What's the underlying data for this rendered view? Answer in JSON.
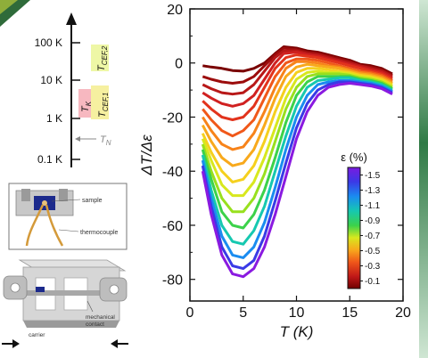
{
  "scale_panel": {
    "ticks": [
      "100 K",
      "10 K",
      "1 K",
      "0.1 K"
    ],
    "labels": {
      "tcef2": {
        "main": "T",
        "sub": "CEF,2"
      },
      "tcef1": {
        "main": "T",
        "sub": "CEF,1"
      },
      "tk": {
        "main": "T",
        "sub": "K"
      },
      "tn": {
        "main": "T",
        "sub": "N"
      }
    },
    "colors": {
      "tcef2": "#eef7a6",
      "tcef1": "#f6f0a0",
      "tk": "#f7b8c0"
    }
  },
  "setup_panel": {
    "sample_label": "sample",
    "thermocouple_label": "thermocouple"
  },
  "carrier_panel": {
    "mechanical_contact_label": "mechanical contact",
    "carrier_label": "carrier"
  },
  "chart_data": {
    "type": "line",
    "xlabel": "T (K)",
    "ylabel": "ΔT/Δε",
    "xlim": [
      0,
      20
    ],
    "ylim": [
      -90,
      20
    ],
    "xticks": [
      "0",
      "5",
      "10",
      "15",
      "20"
    ],
    "yticks": [
      "20",
      "0",
      "-20",
      "-40",
      "-60",
      "-80"
    ],
    "grid": false,
    "legend": {
      "title": "ε (%)",
      "placement": "right, below center",
      "ticks": [
        "-1.5",
        "-1.3",
        "-1.1",
        "-0.9",
        "-0.7",
        "-0.5",
        "-0.3",
        "-0.1"
      ],
      "range": [
        -1.6,
        0.0
      ]
    },
    "series": [
      {
        "eps": -0.05,
        "color": "#7a0000",
        "x": [
          1.2,
          2,
          3,
          4,
          5,
          6,
          7,
          8,
          8.8,
          10,
          11,
          12,
          13,
          14,
          15,
          16,
          17,
          18,
          19
        ],
        "y": [
          -1,
          -1.5,
          -2,
          -2.8,
          -3,
          -2,
          0,
          3.5,
          6,
          5.5,
          4.5,
          4,
          3,
          2,
          1,
          -0.5,
          -1,
          -2,
          -4
        ]
      },
      {
        "eps": -0.15,
        "color": "#9c0c0c",
        "x": [
          1.2,
          2,
          3,
          4,
          5,
          6,
          7,
          8,
          8.8,
          10,
          11,
          12,
          13,
          14,
          15,
          16,
          17,
          18,
          19
        ],
        "y": [
          -5,
          -6,
          -7,
          -7.5,
          -7,
          -5,
          -1,
          3,
          5.5,
          5,
          4,
          3.5,
          2.5,
          1.5,
          0.5,
          -1,
          -1.5,
          -2.5,
          -4.5
        ]
      },
      {
        "eps": -0.25,
        "color": "#b81818",
        "x": [
          1.2,
          2,
          3,
          4,
          5,
          6,
          7,
          8,
          8.8,
          10,
          11,
          12,
          13,
          14,
          15,
          16,
          17,
          18,
          19
        ],
        "y": [
          -8,
          -9.5,
          -11,
          -11.5,
          -11,
          -8,
          -3,
          2,
          4.5,
          4.5,
          3.5,
          3,
          2,
          1,
          0,
          -1,
          -2,
          -3,
          -5
        ]
      },
      {
        "eps": -0.35,
        "color": "#d02020",
        "x": [
          1.2,
          2,
          3,
          4,
          5,
          6,
          7,
          8,
          8.8,
          10,
          11,
          12,
          13,
          14,
          15,
          16,
          17,
          18,
          19
        ],
        "y": [
          -11,
          -13,
          -15,
          -16,
          -15,
          -12,
          -6,
          0,
          3.5,
          4,
          3,
          2.5,
          1.5,
          0.5,
          -0.5,
          -1.5,
          -2.5,
          -3.5,
          -5.5
        ]
      },
      {
        "eps": -0.45,
        "color": "#e2331c",
        "x": [
          1.2,
          2,
          3,
          4,
          5,
          6,
          7,
          8,
          9,
          10,
          11,
          12,
          13,
          14,
          15,
          16,
          17,
          18,
          19
        ],
        "y": [
          -14,
          -17,
          -20,
          -21,
          -20,
          -16,
          -9,
          -2,
          2,
          3,
          2.5,
          2,
          1,
          0,
          -1,
          -2,
          -3,
          -4,
          -6
        ]
      },
      {
        "eps": -0.55,
        "color": "#f0581a",
        "x": [
          1.2,
          2,
          3,
          4,
          5,
          6,
          7,
          8,
          9,
          10,
          11,
          12,
          13,
          14,
          15,
          16,
          17,
          18,
          19
        ],
        "y": [
          -17,
          -21,
          -25,
          -27,
          -25,
          -21,
          -13,
          -5,
          0,
          1.5,
          1.5,
          1,
          0,
          -1,
          -2,
          -3,
          -3.5,
          -4.5,
          -6.5
        ]
      },
      {
        "eps": -0.65,
        "color": "#f7831a",
        "x": [
          1.2,
          2,
          3,
          4,
          5,
          6,
          7,
          8,
          9,
          10,
          11,
          12,
          13,
          14,
          15,
          16,
          17,
          18,
          19
        ],
        "y": [
          -20,
          -25,
          -30,
          -32,
          -31,
          -26,
          -18,
          -9,
          -2,
          0.5,
          0.5,
          0,
          -1,
          -1.5,
          -2.5,
          -3.5,
          -4,
          -5,
          -7
        ]
      },
      {
        "eps": -0.75,
        "color": "#f8a91c",
        "x": [
          1.2,
          2,
          3,
          4,
          5,
          6,
          7,
          8,
          9,
          10,
          11,
          12,
          13,
          14,
          15,
          16,
          17,
          18,
          19
        ],
        "y": [
          -23,
          -29,
          -35,
          -38,
          -37,
          -32,
          -23,
          -13,
          -5,
          -1.5,
          -0.5,
          -1,
          -1.5,
          -2,
          -3,
          -4,
          -4.5,
          -5.5,
          -7.5
        ]
      },
      {
        "eps": -0.85,
        "color": "#f5d01e",
        "x": [
          1.2,
          2,
          3,
          4,
          5,
          6,
          7,
          8,
          9,
          10,
          11,
          12,
          13,
          14,
          15,
          16,
          17,
          18,
          19
        ],
        "y": [
          -26,
          -33,
          -40,
          -44,
          -43,
          -38,
          -29,
          -18,
          -9,
          -3.5,
          -2,
          -2,
          -2.5,
          -3,
          -3.5,
          -4.5,
          -5,
          -6,
          -8
        ]
      },
      {
        "eps": -0.95,
        "color": "#d8e81e",
        "x": [
          1.2,
          2,
          3,
          4,
          5,
          6,
          7,
          8,
          9,
          10,
          11,
          12,
          13,
          14,
          15,
          16,
          17,
          18,
          19
        ],
        "y": [
          -28,
          -36,
          -45,
          -49,
          -49,
          -44,
          -35,
          -24,
          -13,
          -6,
          -3.5,
          -3,
          -3.5,
          -3.5,
          -4,
          -5,
          -5.5,
          -6.5,
          -8.5
        ]
      },
      {
        "eps": -1.05,
        "color": "#98e01e",
        "x": [
          1.2,
          2,
          3,
          4,
          5,
          6,
          7,
          8,
          9,
          10,
          11,
          12,
          13,
          14,
          15,
          16,
          17,
          18,
          19
        ],
        "y": [
          -30,
          -40,
          -50,
          -55,
          -55,
          -50,
          -41,
          -29,
          -17,
          -9,
          -5,
          -4,
          -4,
          -4,
          -4.5,
          -5.5,
          -6,
          -7,
          -9
        ]
      },
      {
        "eps": -1.15,
        "color": "#3cd24a",
        "x": [
          1.2,
          2,
          3,
          4,
          5,
          6,
          7,
          8,
          9,
          10,
          11,
          12,
          13,
          14,
          15,
          16,
          17,
          18,
          19
        ],
        "y": [
          -32,
          -43,
          -55,
          -60,
          -61,
          -56,
          -47,
          -35,
          -22,
          -12,
          -7,
          -5,
          -5,
          -5,
          -5,
          -6,
          -6.5,
          -7.5,
          -9.5
        ]
      },
      {
        "eps": -1.25,
        "color": "#16c8b0",
        "x": [
          1.2,
          2,
          3,
          4,
          5,
          6,
          7,
          8,
          9,
          10,
          11,
          12,
          13,
          14,
          15,
          16,
          17,
          18,
          19
        ],
        "y": [
          -34,
          -47,
          -60,
          -66,
          -67,
          -62,
          -53,
          -40,
          -27,
          -16,
          -9,
          -6.5,
          -6,
          -5.5,
          -5.5,
          -6.5,
          -7,
          -8,
          -10
        ]
      },
      {
        "eps": -1.35,
        "color": "#1a8cf0",
        "x": [
          1.2,
          2,
          3,
          4,
          5,
          6,
          7,
          8,
          9,
          10,
          11,
          12,
          13,
          14,
          15,
          16,
          17,
          18,
          19
        ],
        "y": [
          -36,
          -50,
          -64,
          -71,
          -72,
          -68,
          -59,
          -46,
          -32,
          -20,
          -12,
          -8,
          -7,
          -6.5,
          -6.5,
          -7,
          -7.5,
          -8.5,
          -10.5
        ]
      },
      {
        "eps": -1.45,
        "color": "#3a3ae6",
        "x": [
          1.2,
          2,
          3,
          4,
          5,
          6,
          7,
          8,
          9,
          10,
          11,
          12,
          13,
          14,
          15,
          16,
          17,
          18,
          19
        ],
        "y": [
          -38,
          -53,
          -68,
          -75,
          -76,
          -73,
          -64,
          -51,
          -37,
          -24,
          -15,
          -10,
          -8,
          -7,
          -7,
          -7.5,
          -8,
          -9,
          -11
        ]
      },
      {
        "eps": -1.55,
        "color": "#8a1ae0",
        "x": [
          1.2,
          2,
          3,
          4,
          5,
          6,
          7,
          8,
          9,
          10,
          11,
          12,
          13,
          14,
          15,
          16,
          17,
          18,
          19
        ],
        "y": [
          -40,
          -56,
          -71,
          -78,
          -79,
          -76,
          -68,
          -56,
          -42,
          -28,
          -18,
          -12,
          -9,
          -8,
          -7.5,
          -8,
          -8.5,
          -9.5,
          -11.5
        ]
      }
    ]
  }
}
